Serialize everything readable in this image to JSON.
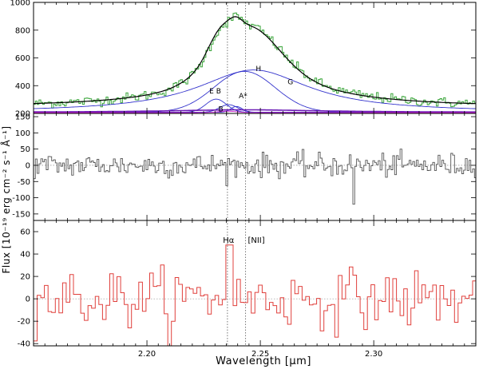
{
  "chart_data": {
    "type": "line",
    "ylabel": "Flux [10⁻¹⁹ erg cm⁻² s⁻¹ Å⁻¹]",
    "xlabel": "Wavelength [μm]",
    "xlim": [
      2.15,
      2.345
    ],
    "x_ticks": [
      "2.20",
      "2.25",
      "2.30"
    ],
    "vlines": [
      2.2355,
      2.2435
    ],
    "colors": {
      "data_green": "#3aa53a",
      "model_black": "#000000",
      "components_blue": "#3333cc",
      "broad_purple": "#6a1bb5",
      "component_b_magenta": "#cc22cc",
      "residual_gray": "#555555",
      "lower_red": "#e0403c"
    },
    "panels": [
      {
        "name": "top",
        "ylim": [
          200,
          1000
        ],
        "y_ticks": [
          "200",
          "400",
          "600",
          "800",
          "1000"
        ],
        "series": [
          {
            "name": "H",
            "model": "lorentz",
            "center": 2.247,
            "amp": 305,
            "hwhm": 0.03
          },
          {
            "name": "G",
            "model": "gauss",
            "center": 2.243,
            "amp": 295,
            "sigma": 0.0135
          },
          {
            "name": "E",
            "model": "gauss",
            "center": 2.2305,
            "amp": 95,
            "sigma": 0.0045
          },
          {
            "name": "A*",
            "model": "gauss",
            "center": 2.2395,
            "amp": 42,
            "sigma": 0.0025
          },
          {
            "name": "B",
            "model": "gauss",
            "center": 2.236,
            "amp": 55,
            "sigma": 0.004
          },
          {
            "name": "broad",
            "model": "lorentz",
            "center": 2.243,
            "amp": 18,
            "hwhm": 0.04,
            "baseline": 208
          },
          {
            "name": "total",
            "model": "sum",
            "continuum": 245,
            "peak": 862,
            "peak_x": 2.235
          },
          {
            "name": "data",
            "model": "noisy",
            "noise": 18
          }
        ],
        "labels": [
          {
            "text": "H",
            "x": 2.248,
            "y": 505
          },
          {
            "text": "G",
            "x": 2.262,
            "y": 410
          },
          {
            "text": "E",
            "x": 2.2275,
            "y": 345
          },
          {
            "text": "B",
            "x": 2.2305,
            "y": 345
          },
          {
            "text": "A*",
            "x": 2.2405,
            "y": 308
          },
          {
            "text": "B",
            "x": 2.2315,
            "y": 213
          }
        ]
      },
      {
        "name": "middle",
        "ylim": [
          -170,
          160
        ],
        "y_ticks": [
          "-150",
          "-100",
          "-50",
          "0",
          "50",
          "100",
          "150"
        ],
        "series": [
          {
            "name": "residual",
            "mean": 0,
            "noise": 18,
            "spike": {
              "x": 2.291,
              "y": -120
            }
          }
        ]
      },
      {
        "name": "bottom",
        "ylim": [
          -42,
          70
        ],
        "y_ticks": [
          "-40",
          "-20",
          "0",
          "20",
          "40",
          "60"
        ],
        "series": [
          {
            "name": "residual_binned",
            "mean": 0,
            "noise": 13,
            "peak": {
              "x": 2.2355,
              "y": 48
            }
          }
        ],
        "labels": [
          {
            "text": "Hα",
            "x": 2.2335,
            "y": 50
          },
          {
            "text": "[NII]",
            "x": 2.2445,
            "y": 50
          }
        ]
      }
    ]
  }
}
